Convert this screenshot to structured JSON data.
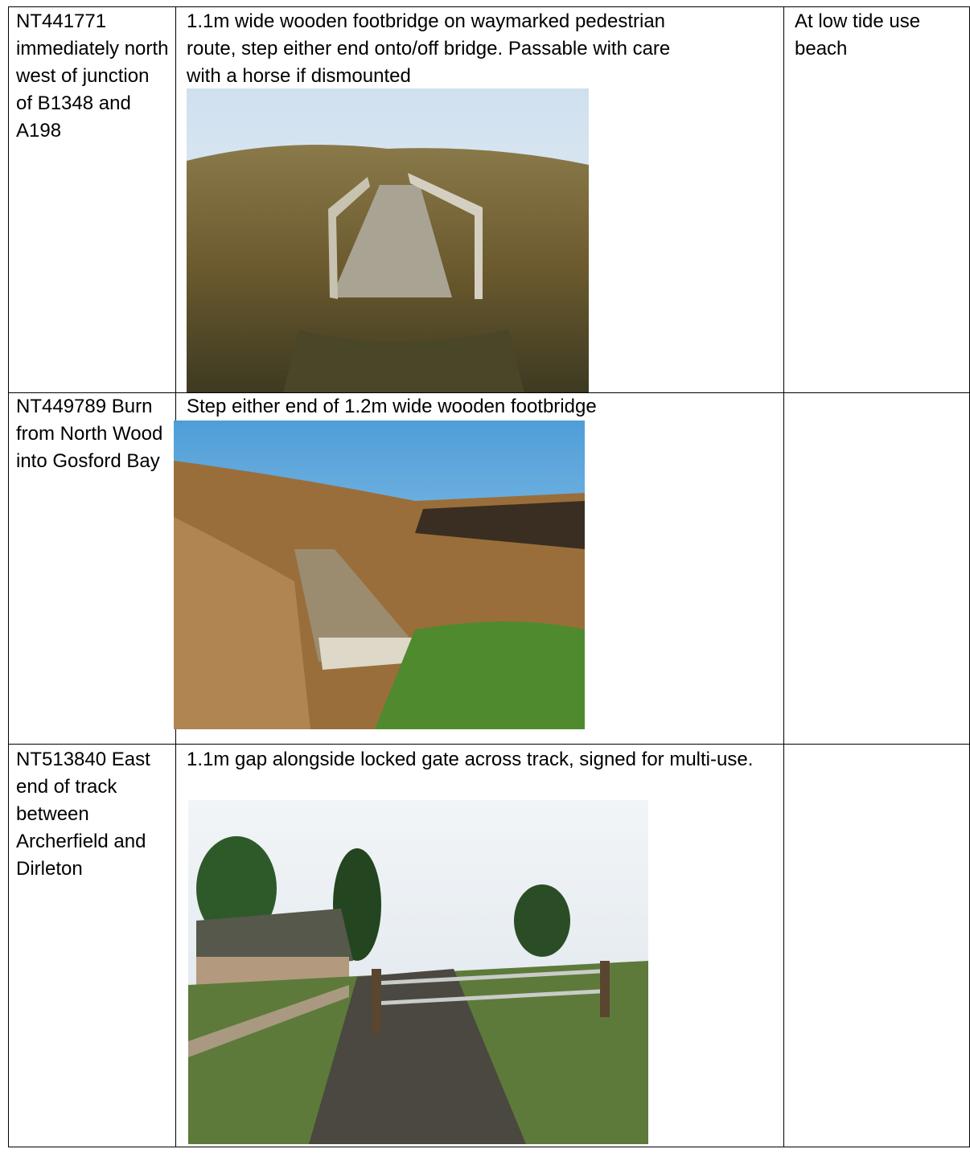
{
  "table": {
    "rows": [
      [
        "NT441771 immediately north west of junction of B1348 and A198",
        "1.1m wide wooden footbridge on waymarked pedestrian route, step either end onto/off bridge. Passable with care with a horse if dismounted",
        "At low tide use beach"
      ],
      [
        "NT449789 Burn from North Wood into Gosford Bay",
        "Step either end of 1.2m wide wooden footbridge"
      ],
      [
        "NT513840 East end of track between Archerfield and Dirleton",
        "1.1m gap alongside locked gate across track, signed for multi-use."
      ]
    ]
  }
}
